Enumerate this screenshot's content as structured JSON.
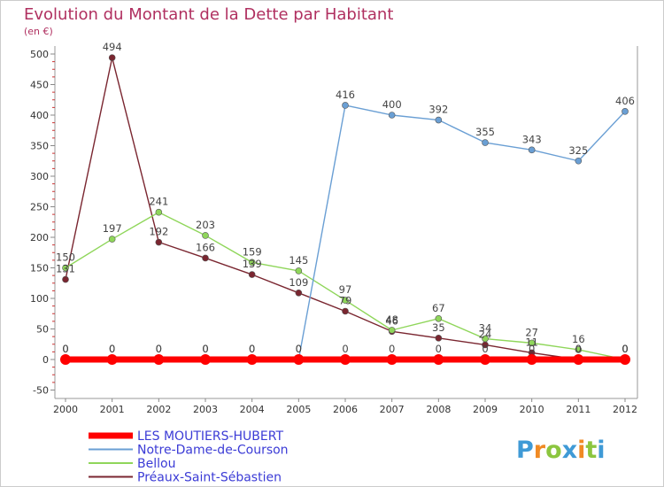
{
  "chart_data": {
    "type": "line",
    "title": "Evolution du Montant de la Dette par Habitant",
    "subtitle": "(en €)",
    "x": [
      "2000",
      "2001",
      "2002",
      "2003",
      "2004",
      "2005",
      "2006",
      "2007",
      "2008",
      "2009",
      "2010",
      "2011",
      "2012"
    ],
    "ylim": [
      -50,
      500
    ],
    "yticks": [
      -50,
      0,
      50,
      100,
      150,
      200,
      250,
      300,
      350,
      400,
      450,
      500
    ],
    "grid": false,
    "legend_position": "bottom",
    "series": [
      {
        "name": "LES MOUTIERS-HUBERT",
        "color": "#ff0000",
        "values": [
          0,
          0,
          0,
          0,
          0,
          0,
          0,
          0,
          0,
          0,
          0,
          0,
          0
        ],
        "labels": [
          "0",
          "0",
          "0",
          "0",
          "0",
          "0",
          "0",
          "0",
          "0",
          "0",
          "0",
          "0",
          "0"
        ]
      },
      {
        "name": "Notre-Dame-de-Courson",
        "color": "#6a9fd4",
        "values": [
          0,
          0,
          0,
          0,
          0,
          0,
          416,
          400,
          392,
          355,
          343,
          325,
          406
        ],
        "labels": [
          "0",
          "0",
          "0",
          "0",
          "0",
          "0",
          "416",
          "400",
          "392",
          "355",
          "343",
          "325",
          "406"
        ]
      },
      {
        "name": "Bellou",
        "color": "#8fd65a",
        "values": [
          150,
          197,
          241,
          203,
          159,
          145,
          97,
          48,
          67,
          34,
          27,
          16,
          0
        ],
        "labels": [
          "150",
          "197",
          "241",
          "203",
          "159",
          "145",
          "97",
          "48",
          "67",
          "34",
          "27",
          "16",
          "0"
        ]
      },
      {
        "name": "Préaux-Saint-Sébastien",
        "color": "#7a2630",
        "values": [
          131,
          494,
          192,
          166,
          139,
          109,
          79,
          46,
          35,
          24,
          11,
          0,
          0
        ],
        "labels": [
          "131",
          "494",
          "192",
          "166",
          "139",
          "109",
          "79",
          "46",
          "35",
          "24",
          "11",
          "0",
          "0"
        ]
      }
    ]
  },
  "logo": {
    "letters": [
      "P",
      "r",
      "o",
      "x",
      "i",
      "t",
      "i"
    ],
    "colors": [
      "#3f9ad6",
      "#f08a24",
      "#8cc63f",
      "#3f9ad6",
      "#f08a24",
      "#8cc63f",
      "#3f9ad6"
    ]
  }
}
